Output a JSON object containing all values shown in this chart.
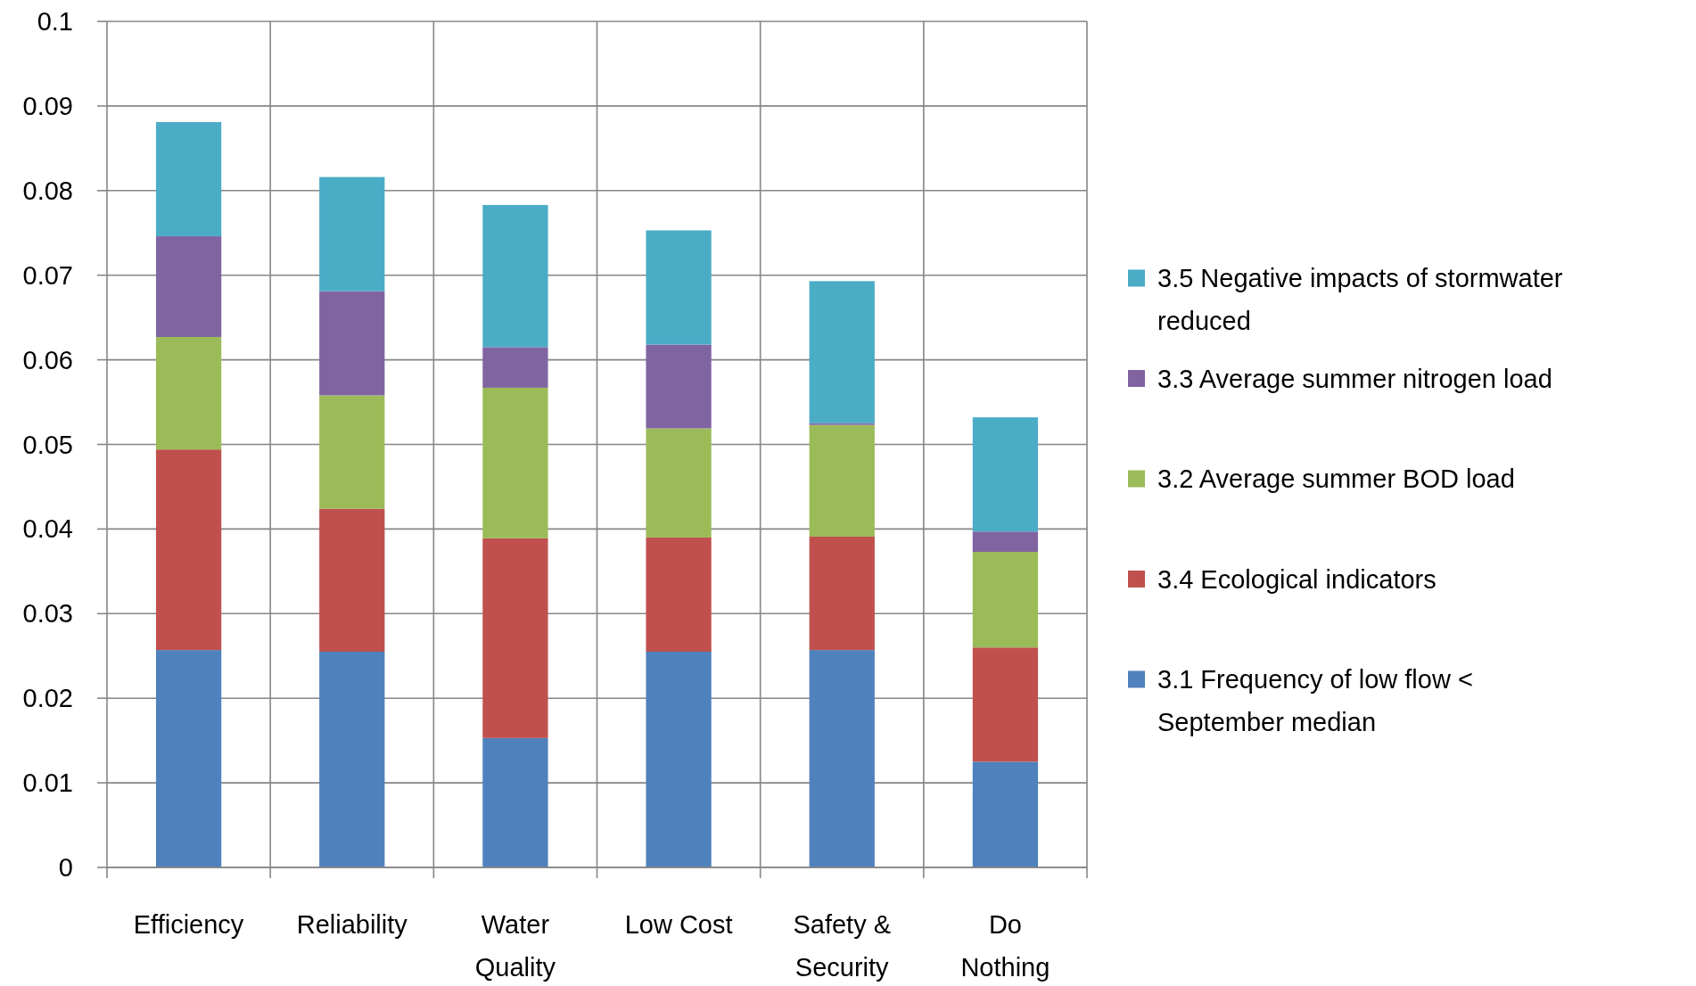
{
  "chart_data": {
    "type": "bar",
    "stacked": true,
    "categories": [
      "Efficiency",
      "Reliability",
      "Water Quality",
      "Low Cost",
      "Safety & Security",
      "Do Nothing"
    ],
    "series": [
      {
        "name": "3.1 Frequency of low flow < September median",
        "color": "#4f81bd",
        "values": [
          0.0257,
          0.0255,
          0.0153,
          0.0255,
          0.0257,
          0.0125
        ]
      },
      {
        "name": "3.4 Ecological indicators",
        "color": "#c0504d",
        "values": [
          0.0237,
          0.0169,
          0.0236,
          0.0135,
          0.0134,
          0.0135
        ]
      },
      {
        "name": "3.2 Average summer BOD load",
        "color": "#9bbb59",
        "values": [
          0.0133,
          0.0134,
          0.0178,
          0.0129,
          0.0132,
          0.0113
        ]
      },
      {
        "name": "3.3 Average summer nitrogen load",
        "color": "#8064a2",
        "values": [
          0.0119,
          0.0123,
          0.0048,
          0.0099,
          0.0002,
          0.0024
        ]
      },
      {
        "name": "3.5 Negative impacts of stormwater reduced",
        "color": "#4bacc6",
        "values": [
          0.0135,
          0.0135,
          0.0168,
          0.0135,
          0.0168,
          0.0135
        ]
      }
    ],
    "ylim": [
      0,
      0.1
    ],
    "yticks": [
      0,
      0.01,
      0.02,
      0.03,
      0.04,
      0.05,
      0.06,
      0.07,
      0.08,
      0.09,
      0.1
    ],
    "grid": true,
    "legend": "right"
  }
}
